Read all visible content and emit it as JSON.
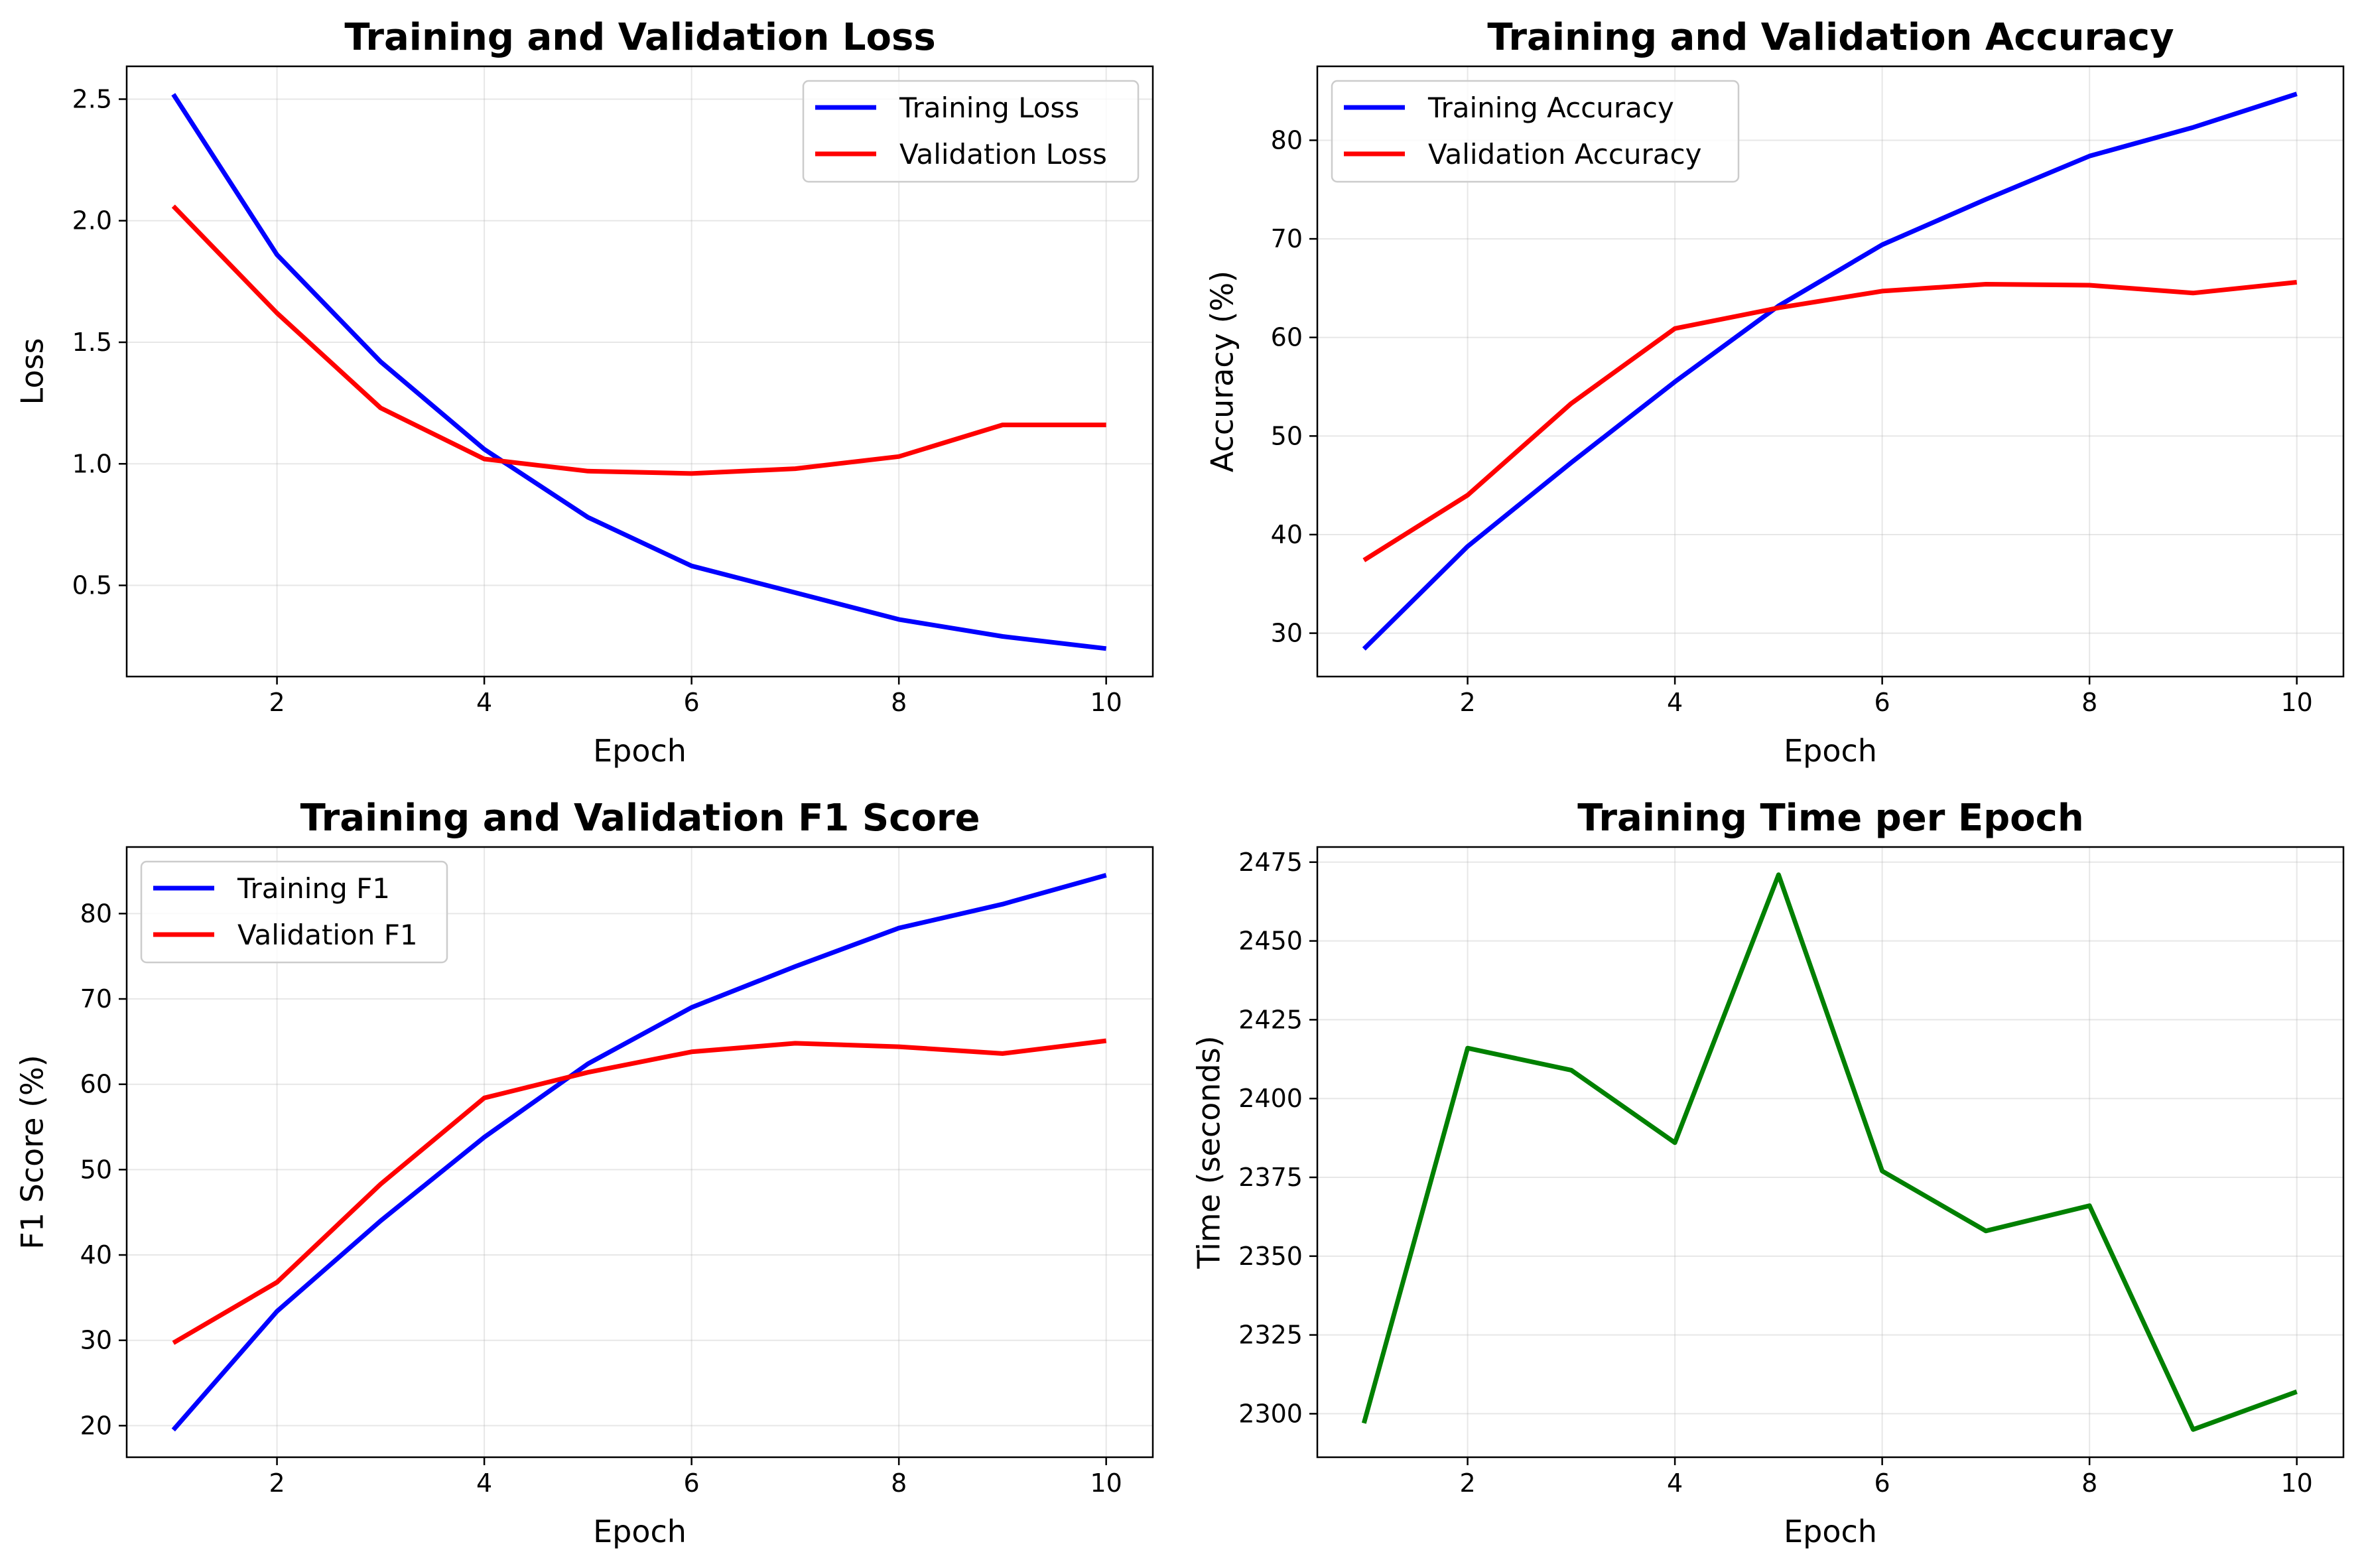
{
  "chart_data": [
    {
      "type": "line",
      "title": "Training and Validation Loss",
      "xlabel": "Epoch",
      "ylabel": "Loss",
      "x": [
        1,
        2,
        3,
        4,
        5,
        6,
        7,
        8,
        9,
        10
      ],
      "series": [
        {
          "name": "Training Loss",
          "color": "#0000ff",
          "values": [
            2.52,
            1.86,
            1.42,
            1.06,
            0.78,
            0.58,
            0.47,
            0.36,
            0.29,
            0.24
          ]
        },
        {
          "name": "Validation Loss",
          "color": "#ff0000",
          "values": [
            2.06,
            1.62,
            1.23,
            1.02,
            0.97,
            0.96,
            0.98,
            1.03,
            1.16,
            1.16
          ]
        }
      ],
      "xlim": [
        0.55,
        10.45
      ],
      "ylim": [
        0.125,
        2.635
      ],
      "xticks": [
        2,
        4,
        6,
        8,
        10
      ],
      "yticks": [
        0.5,
        1.0,
        1.5,
        2.0,
        2.5
      ],
      "ytick_labels": [
        "0.5",
        "1.0",
        "1.5",
        "2.0",
        "2.5"
      ],
      "grid": true,
      "legend": "upper right"
    },
    {
      "type": "line",
      "title": "Training and Validation Accuracy",
      "xlabel": "Epoch",
      "ylabel": "Accuracy (%)",
      "x": [
        1,
        2,
        3,
        4,
        5,
        6,
        7,
        8,
        9,
        10
      ],
      "series": [
        {
          "name": "Training Accuracy",
          "color": "#0000ff",
          "values": [
            28.4,
            38.8,
            47.3,
            55.5,
            63.2,
            69.4,
            74.0,
            78.4,
            81.3,
            84.7
          ]
        },
        {
          "name": "Validation Accuracy",
          "color": "#ff0000",
          "values": [
            37.4,
            44.0,
            53.3,
            60.9,
            63.0,
            64.7,
            65.4,
            65.3,
            64.5,
            65.6
          ]
        }
      ],
      "xlim": [
        0.55,
        10.45
      ],
      "ylim": [
        25.6,
        87.5
      ],
      "xticks": [
        2,
        4,
        6,
        8,
        10
      ],
      "yticks": [
        30,
        40,
        50,
        60,
        70,
        80
      ],
      "ytick_labels": [
        "30",
        "40",
        "50",
        "60",
        "70",
        "80"
      ],
      "grid": true,
      "legend": "upper left"
    },
    {
      "type": "line",
      "title": "Training and Validation F1 Score",
      "xlabel": "Epoch",
      "ylabel": "F1 Score (%)",
      "x": [
        1,
        2,
        3,
        4,
        5,
        6,
        7,
        8,
        9,
        10
      ],
      "series": [
        {
          "name": "Training F1",
          "color": "#0000ff",
          "values": [
            19.5,
            33.4,
            44.0,
            53.8,
            62.4,
            69.0,
            73.8,
            78.3,
            81.1,
            84.5
          ]
        },
        {
          "name": "Validation F1",
          "color": "#ff0000",
          "values": [
            29.7,
            36.8,
            48.3,
            58.4,
            61.4,
            63.8,
            64.8,
            64.4,
            63.6,
            65.1
          ]
        }
      ],
      "xlim": [
        0.55,
        10.45
      ],
      "ylim": [
        16.3,
        87.8
      ],
      "xticks": [
        2,
        4,
        6,
        8,
        10
      ],
      "yticks": [
        20,
        30,
        40,
        50,
        60,
        70,
        80
      ],
      "ytick_labels": [
        "20",
        "30",
        "40",
        "50",
        "60",
        "70",
        "80"
      ],
      "grid": true,
      "legend": "upper left"
    },
    {
      "type": "line",
      "title": "Training Time per Epoch",
      "xlabel": "Epoch",
      "ylabel": "Time (seconds)",
      "x": [
        1,
        2,
        3,
        4,
        5,
        6,
        7,
        8,
        9,
        10
      ],
      "series": [
        {
          "color": "#008000",
          "values": [
            2297,
            2416,
            2409,
            2386,
            2471,
            2377,
            2358,
            2366,
            2295,
            2307
          ]
        }
      ],
      "xlim": [
        0.55,
        10.45
      ],
      "ylim": [
        2286.2,
        2479.8
      ],
      "xticks": [
        2,
        4,
        6,
        8,
        10
      ],
      "yticks": [
        2300,
        2325,
        2350,
        2375,
        2400,
        2425,
        2450,
        2475
      ],
      "ytick_labels": [
        "2300",
        "2325",
        "2350",
        "2375",
        "2400",
        "2425",
        "2450",
        "2475"
      ],
      "grid": true,
      "legend": "none"
    }
  ]
}
